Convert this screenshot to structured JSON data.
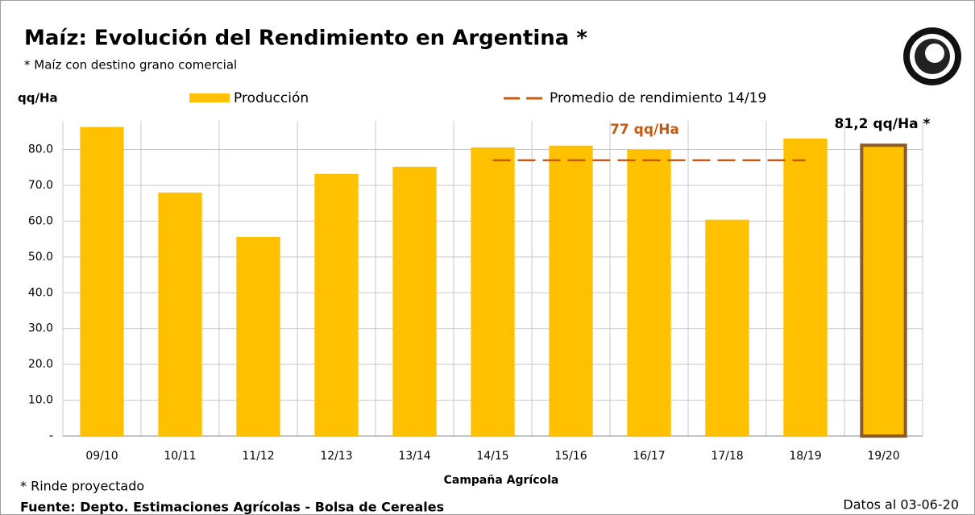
{
  "chart_data": {
    "type": "bar",
    "title": "Maíz: Evolución del Rendimiento en Argentina *",
    "subtitle": "* Maíz con destino grano comercial",
    "y_label": "qq/Ha",
    "x_label": "Campaña Agrícola",
    "categories": [
      "09/10",
      "10/11",
      "11/12",
      "12/13",
      "13/14",
      "14/15",
      "15/16",
      "16/17",
      "17/18",
      "18/19",
      "19/20"
    ],
    "series": [
      {
        "name": "Producción",
        "type": "bar",
        "color": "#ffc000",
        "values": [
          86.3,
          68,
          55.6,
          73.2,
          75.2,
          80.6,
          81.1,
          80,
          60.4,
          83.1,
          81.2
        ]
      },
      {
        "name": "Promedio de rendimiento 14/19",
        "type": "line",
        "color": "#c55a11",
        "dashed": true,
        "values": [
          null,
          null,
          null,
          null,
          null,
          77,
          77,
          77,
          77,
          77,
          null
        ]
      }
    ],
    "highlight": {
      "index": 10,
      "edgecolor": "#8b5a2b"
    },
    "annotations": [
      {
        "text": "77 qq/Ha",
        "color": "#c55a11"
      },
      {
        "text": "81,2 qq/Ha *",
        "color": "#000000"
      }
    ],
    "ylim": [
      0,
      88
    ],
    "yticks": [
      {
        "value": 0,
        "label": "-"
      },
      {
        "value": 10,
        "label": "10.0"
      },
      {
        "value": 20,
        "label": "20.0"
      },
      {
        "value": 30,
        "label": "30.0"
      },
      {
        "value": 40,
        "label": "40.0"
      },
      {
        "value": 50,
        "label": "50.0"
      },
      {
        "value": 60,
        "label": "60.0"
      },
      {
        "value": 70,
        "label": "70.0"
      },
      {
        "value": 80,
        "label": "80.0"
      }
    ],
    "grid": true,
    "footnotes": [
      "* Rinde proyectado",
      "Fuente: Depto. Estimaciones Agrícolas - Bolsa de Cereales"
    ],
    "date_note": "Datos al 03-06-20"
  }
}
